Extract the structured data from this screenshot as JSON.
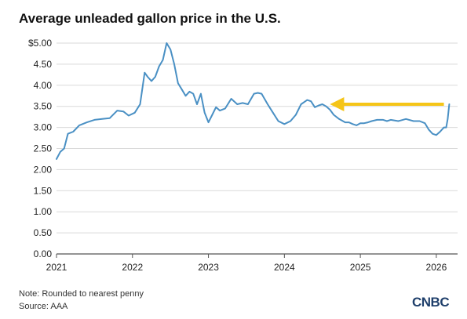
{
  "chart_data": {
    "type": "line",
    "title": "Average unleaded gallon price in the U.S.",
    "xlabel": "",
    "ylabel": "",
    "ylim": [
      0,
      5
    ],
    "xlim": [
      2021.0,
      2026.28
    ],
    "y_ticks": [
      "$5.00",
      "4.50",
      "4.00",
      "3.50",
      "3.00",
      "2.50",
      "2.00",
      "1.50",
      "1.00",
      "0.50",
      "0.00"
    ],
    "y_tick_values": [
      5.0,
      4.5,
      4.0,
      3.5,
      3.0,
      2.5,
      2.0,
      1.5,
      1.0,
      0.5,
      0.0
    ],
    "x_ticks": [
      "2021",
      "2022",
      "2023",
      "2024",
      "2025",
      "2026"
    ],
    "x_tick_values": [
      2021,
      2022,
      2023,
      2024,
      2025,
      2026
    ],
    "grid": "horizontal",
    "line_color": "#4a90c4",
    "series": [
      {
        "name": "",
        "points": [
          [
            2021.0,
            2.25
          ],
          [
            2021.05,
            2.42
          ],
          [
            2021.1,
            2.5
          ],
          [
            2021.15,
            2.85
          ],
          [
            2021.22,
            2.9
          ],
          [
            2021.3,
            3.05
          ],
          [
            2021.4,
            3.12
          ],
          [
            2021.5,
            3.18
          ],
          [
            2021.6,
            3.2
          ],
          [
            2021.7,
            3.22
          ],
          [
            2021.8,
            3.4
          ],
          [
            2021.88,
            3.38
          ],
          [
            2021.95,
            3.28
          ],
          [
            2022.03,
            3.35
          ],
          [
            2022.1,
            3.55
          ],
          [
            2022.16,
            4.3
          ],
          [
            2022.2,
            4.2
          ],
          [
            2022.25,
            4.1
          ],
          [
            2022.3,
            4.2
          ],
          [
            2022.35,
            4.45
          ],
          [
            2022.4,
            4.6
          ],
          [
            2022.45,
            5.0
          ],
          [
            2022.5,
            4.85
          ],
          [
            2022.55,
            4.5
          ],
          [
            2022.6,
            4.05
          ],
          [
            2022.65,
            3.9
          ],
          [
            2022.7,
            3.75
          ],
          [
            2022.75,
            3.85
          ],
          [
            2022.8,
            3.8
          ],
          [
            2022.85,
            3.55
          ],
          [
            2022.9,
            3.8
          ],
          [
            2022.95,
            3.35
          ],
          [
            2023.0,
            3.12
          ],
          [
            2023.05,
            3.3
          ],
          [
            2023.1,
            3.48
          ],
          [
            2023.15,
            3.4
          ],
          [
            2023.22,
            3.45
          ],
          [
            2023.3,
            3.68
          ],
          [
            2023.38,
            3.55
          ],
          [
            2023.45,
            3.58
          ],
          [
            2023.52,
            3.55
          ],
          [
            2023.6,
            3.8
          ],
          [
            2023.65,
            3.82
          ],
          [
            2023.7,
            3.8
          ],
          [
            2023.78,
            3.55
          ],
          [
            2023.85,
            3.35
          ],
          [
            2023.92,
            3.15
          ],
          [
            2024.0,
            3.08
          ],
          [
            2024.08,
            3.15
          ],
          [
            2024.15,
            3.3
          ],
          [
            2024.22,
            3.55
          ],
          [
            2024.3,
            3.65
          ],
          [
            2024.35,
            3.62
          ],
          [
            2024.4,
            3.48
          ],
          [
            2024.45,
            3.52
          ],
          [
            2024.5,
            3.55
          ],
          [
            2024.55,
            3.5
          ],
          [
            2024.6,
            3.42
          ],
          [
            2024.65,
            3.3
          ],
          [
            2024.72,
            3.2
          ],
          [
            2024.8,
            3.12
          ],
          [
            2024.85,
            3.12
          ],
          [
            2024.9,
            3.08
          ],
          [
            2024.95,
            3.05
          ],
          [
            2025.0,
            3.1
          ],
          [
            2025.05,
            3.1
          ],
          [
            2025.1,
            3.12
          ],
          [
            2025.15,
            3.15
          ],
          [
            2025.22,
            3.18
          ],
          [
            2025.3,
            3.18
          ],
          [
            2025.35,
            3.15
          ],
          [
            2025.4,
            3.18
          ],
          [
            2025.5,
            3.15
          ],
          [
            2025.6,
            3.2
          ],
          [
            2025.7,
            3.15
          ],
          [
            2025.78,
            3.15
          ],
          [
            2025.85,
            3.1
          ],
          [
            2025.9,
            2.95
          ],
          [
            2025.95,
            2.85
          ],
          [
            2026.0,
            2.82
          ],
          [
            2026.05,
            2.9
          ],
          [
            2026.1,
            3.0
          ],
          [
            2026.13,
            3.0
          ],
          [
            2026.15,
            3.2
          ],
          [
            2026.17,
            3.55
          ]
        ]
      }
    ],
    "annotation": {
      "type": "arrow",
      "color": "#f5c518",
      "from": [
        2026.1,
        3.55
      ],
      "to": [
        2024.6,
        3.55
      ]
    }
  },
  "footer": {
    "note": "Note: Rounded to nearest penny",
    "source": "Source: AAA"
  },
  "logo": {
    "name": "cnbc-logo",
    "text": "CNBC",
    "color": "#1f3f6b"
  }
}
